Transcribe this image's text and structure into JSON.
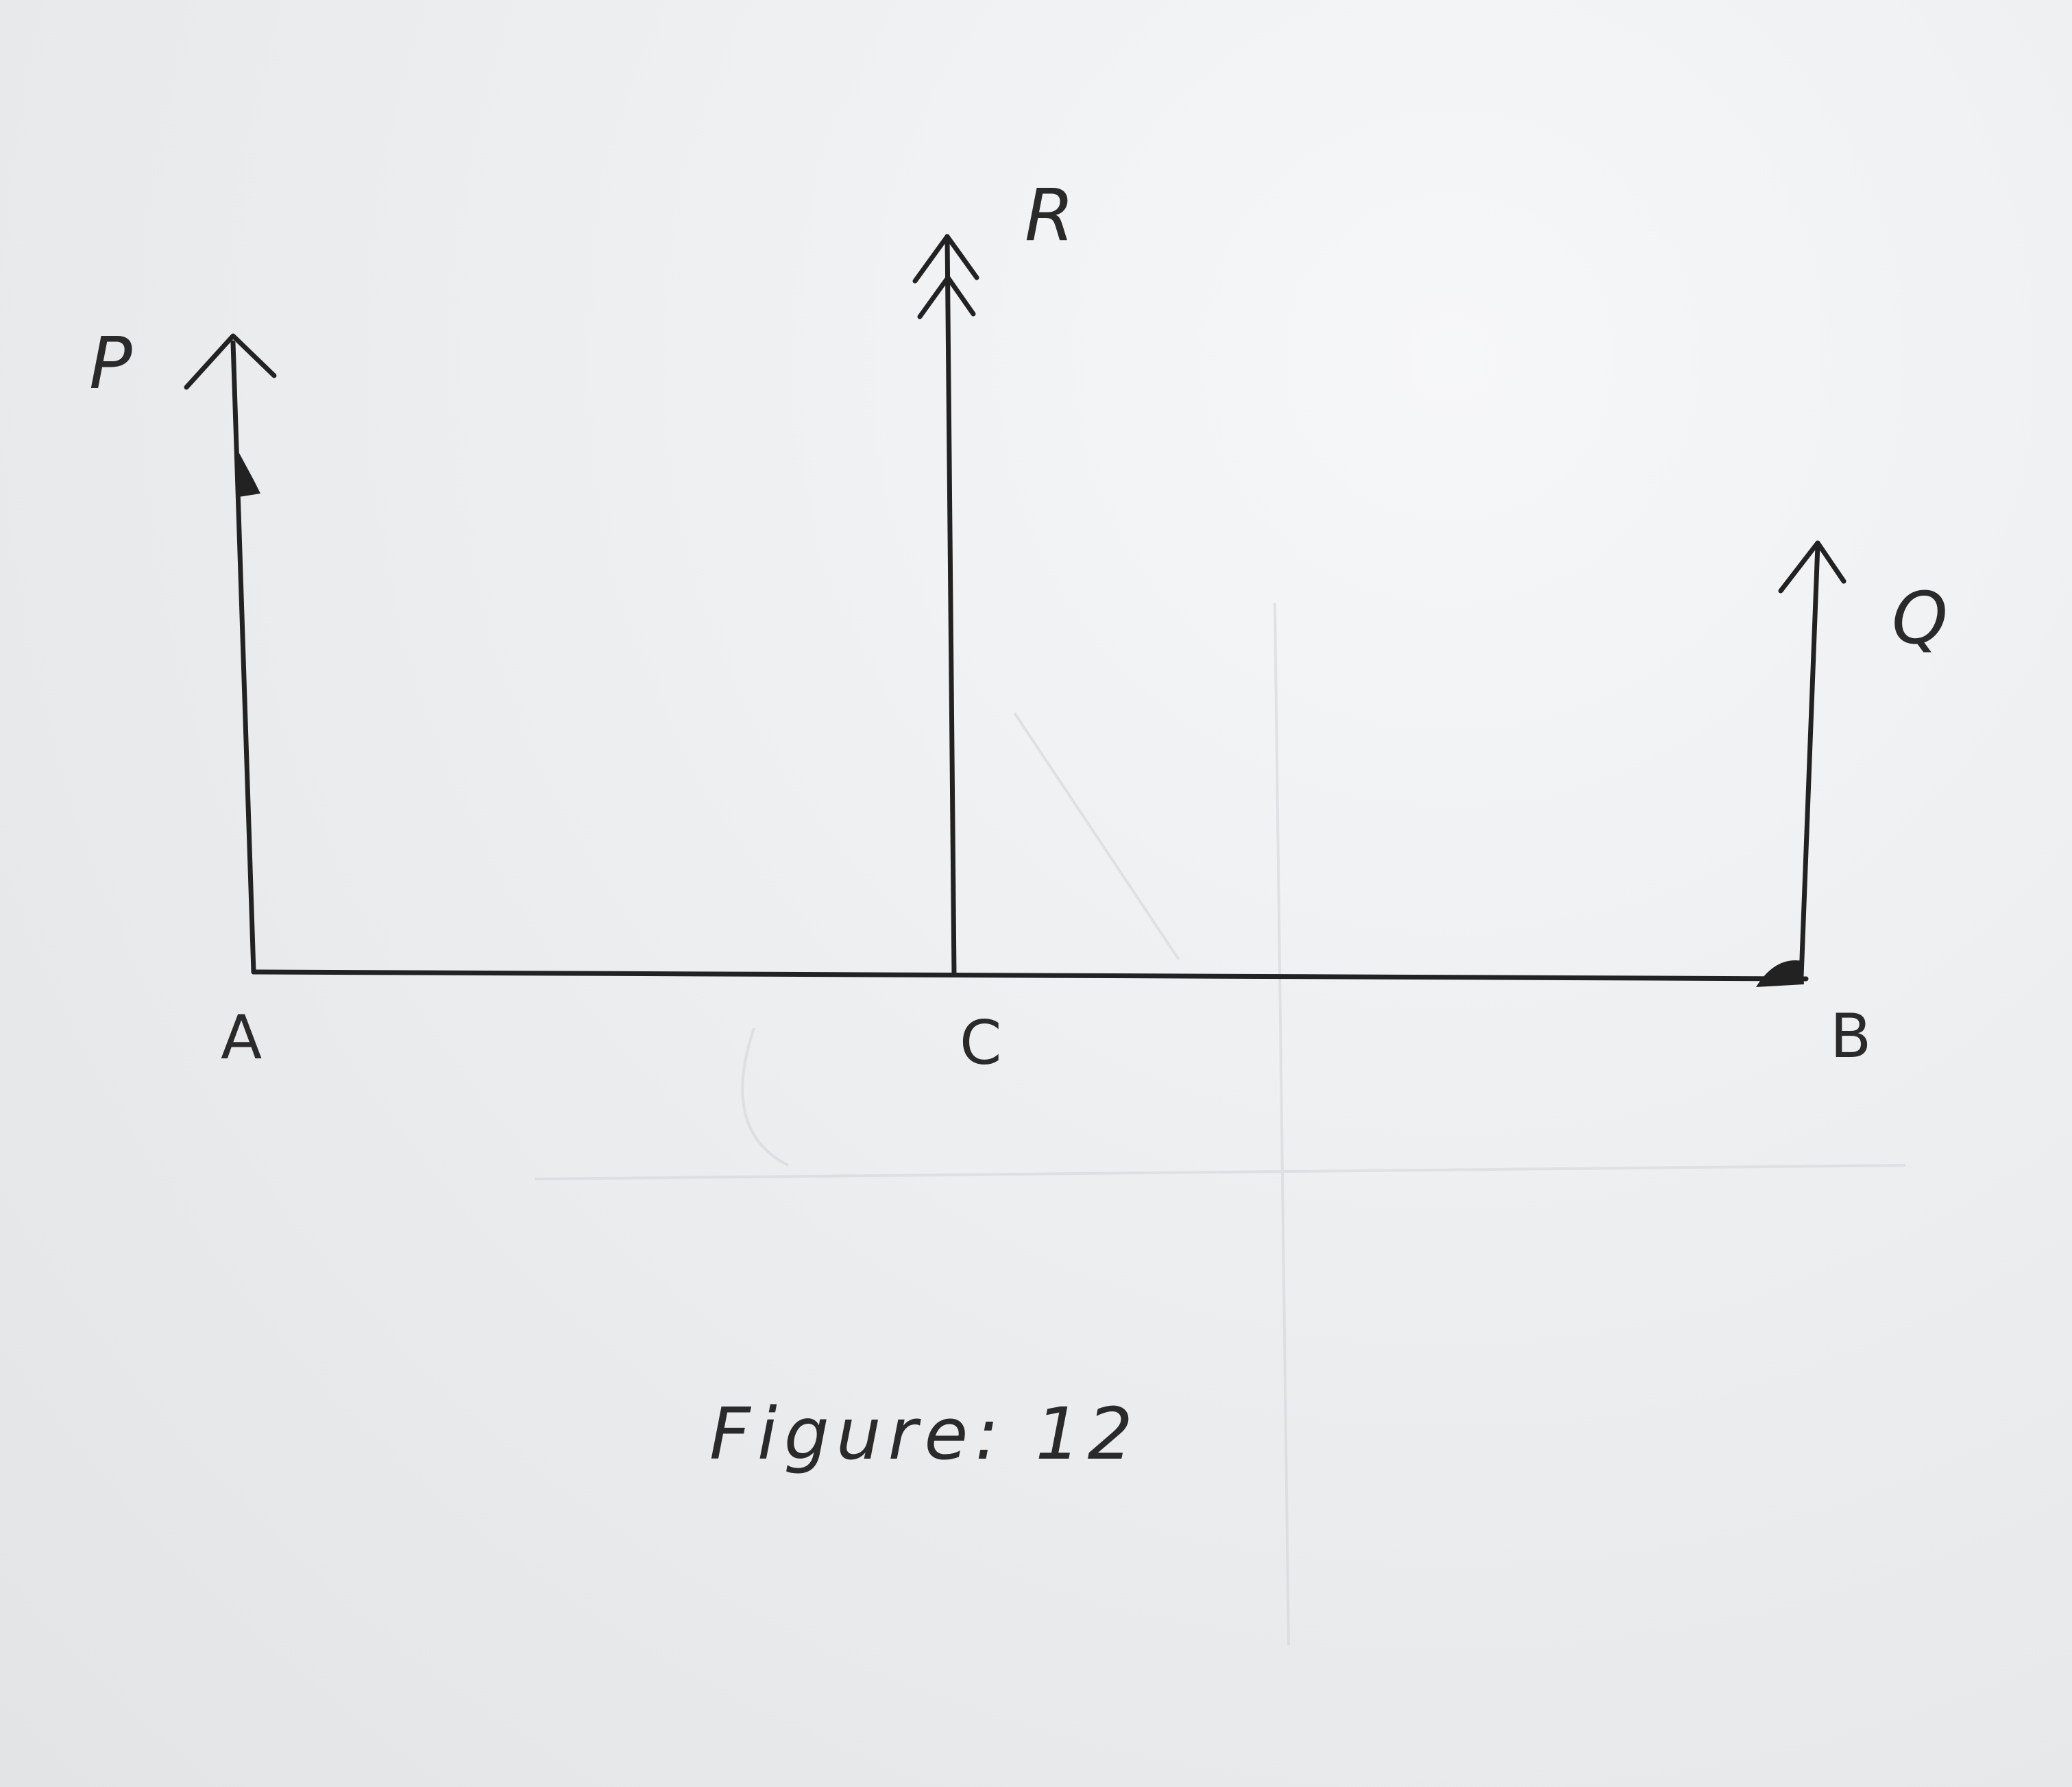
{
  "diagram": {
    "points": {
      "a": "A",
      "c": "C",
      "b": "B"
    },
    "forces": {
      "p": "P",
      "r": "R",
      "q": "Q"
    },
    "caption": "Figure: 12"
  }
}
